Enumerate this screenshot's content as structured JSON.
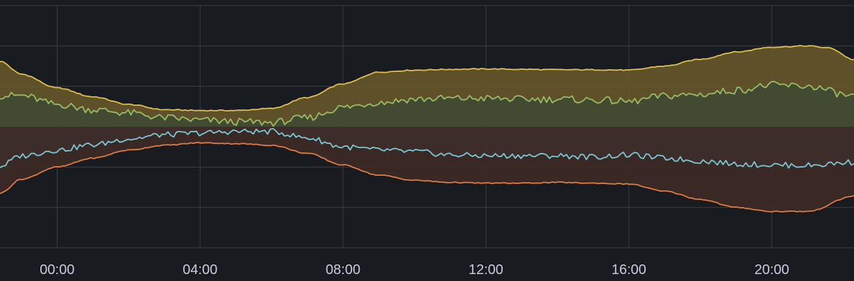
{
  "chart_data": {
    "type": "area",
    "title": "",
    "xlabel": "",
    "ylabel": "",
    "x_unit": "hour_of_day",
    "x_range": [
      -1.6,
      22.3
    ],
    "x_ticks": [
      "00:00",
      "04:00",
      "08:00",
      "12:00",
      "16:00",
      "20:00"
    ],
    "x_tick_values": [
      0,
      4,
      8,
      12,
      16,
      20
    ],
    "ylim": [
      -3,
      3
    ],
    "y_gridlines": [
      -3,
      -2,
      -1,
      0,
      1,
      2,
      3
    ],
    "grid": true,
    "legend": "none",
    "baseline": 0,
    "background": "#181b1f",
    "grid_color": "#3a3d42",
    "series": [
      {
        "color": "#e0c14f",
        "fill": "#6b5a2c",
        "points": [
          [
            -1.6,
            1.62
          ],
          [
            -1,
            1.3
          ],
          [
            0,
            0.96
          ],
          [
            1,
            0.74
          ],
          [
            2,
            0.55
          ],
          [
            3,
            0.42
          ],
          [
            4,
            0.4
          ],
          [
            5,
            0.4
          ],
          [
            6,
            0.45
          ],
          [
            7,
            0.72
          ],
          [
            8,
            1.06
          ],
          [
            9,
            1.35
          ],
          [
            10,
            1.4
          ],
          [
            11,
            1.42
          ],
          [
            12,
            1.43
          ],
          [
            13,
            1.42
          ],
          [
            14,
            1.41
          ],
          [
            15,
            1.41
          ],
          [
            16,
            1.4
          ],
          [
            17,
            1.5
          ],
          [
            18,
            1.67
          ],
          [
            19,
            1.85
          ],
          [
            20,
            1.97
          ],
          [
            21,
            2.0
          ],
          [
            21.6,
            1.95
          ],
          [
            22.3,
            1.66
          ]
        ]
      },
      {
        "color": "#9bbd67",
        "fill": "#3d4a33",
        "points": [
          [
            -1.6,
            0.77
          ],
          [
            -1,
            0.77
          ],
          [
            0,
            0.55
          ],
          [
            1,
            0.42
          ],
          [
            2,
            0.34
          ],
          [
            3,
            0.22
          ],
          [
            4,
            0.16
          ],
          [
            5,
            0.12
          ],
          [
            6,
            0.1
          ],
          [
            7,
            0.22
          ],
          [
            8,
            0.48
          ],
          [
            9,
            0.6
          ],
          [
            10,
            0.68
          ],
          [
            11,
            0.7
          ],
          [
            12,
            0.7
          ],
          [
            13,
            0.68
          ],
          [
            14,
            0.68
          ],
          [
            15,
            0.66
          ],
          [
            16,
            0.62
          ],
          [
            17,
            0.76
          ],
          [
            18,
            0.8
          ],
          [
            19,
            0.9
          ],
          [
            20,
            1.03
          ],
          [
            21,
            1.0
          ],
          [
            22.3,
            0.75
          ]
        ]
      },
      {
        "color": "#7ec9d6",
        "fill": "#2b4652",
        "points": [
          [
            -1.6,
            -0.98
          ],
          [
            -1,
            -0.72
          ],
          [
            0,
            -0.58
          ],
          [
            1,
            -0.45
          ],
          [
            2,
            -0.3
          ],
          [
            3,
            -0.2
          ],
          [
            4,
            -0.16
          ],
          [
            5,
            -0.12
          ],
          [
            6,
            -0.12
          ],
          [
            7,
            -0.28
          ],
          [
            8,
            -0.5
          ],
          [
            9,
            -0.58
          ],
          [
            10,
            -0.62
          ],
          [
            11,
            -0.7
          ],
          [
            12,
            -0.72
          ],
          [
            13,
            -0.72
          ],
          [
            14,
            -0.72
          ],
          [
            15,
            -0.75
          ],
          [
            16,
            -0.7
          ],
          [
            17,
            -0.78
          ],
          [
            18,
            -0.85
          ],
          [
            19,
            -0.92
          ],
          [
            20,
            -0.95
          ],
          [
            21,
            -0.96
          ],
          [
            22.3,
            -0.88
          ]
        ]
      },
      {
        "color": "#e07d45",
        "fill": "#3f2a24",
        "points": [
          [
            -1.6,
            -1.65
          ],
          [
            -1,
            -1.3
          ],
          [
            0,
            -1.0
          ],
          [
            1,
            -0.78
          ],
          [
            2,
            -0.58
          ],
          [
            3,
            -0.46
          ],
          [
            4,
            -0.4
          ],
          [
            5,
            -0.42
          ],
          [
            6,
            -0.46
          ],
          [
            7,
            -0.66
          ],
          [
            8,
            -0.95
          ],
          [
            9,
            -1.2
          ],
          [
            10,
            -1.33
          ],
          [
            11,
            -1.38
          ],
          [
            12,
            -1.4
          ],
          [
            13,
            -1.4
          ],
          [
            14,
            -1.38
          ],
          [
            15,
            -1.4
          ],
          [
            16,
            -1.42
          ],
          [
            17,
            -1.6
          ],
          [
            18,
            -1.8
          ],
          [
            19,
            -2.0
          ],
          [
            20,
            -2.1
          ],
          [
            21,
            -2.1
          ],
          [
            22.3,
            -1.72
          ]
        ]
      }
    ]
  }
}
